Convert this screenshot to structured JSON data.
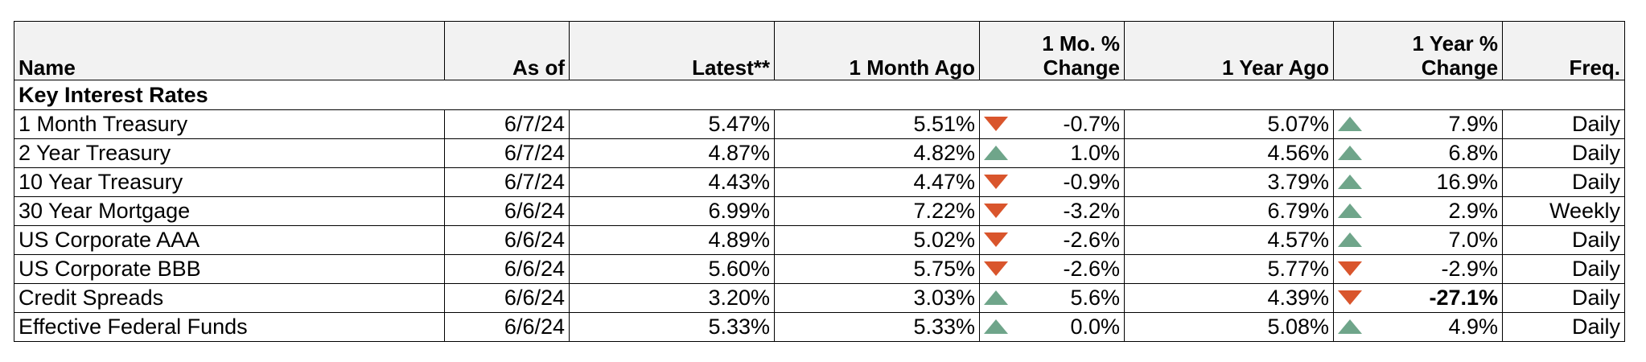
{
  "headers": {
    "name": "Name",
    "as_of": "As of",
    "latest": "Latest**",
    "month_ago": "1 Month Ago",
    "mo_change_line1": "1 Mo. %",
    "mo_change_line2": "Change",
    "year_ago": "1 Year Ago",
    "yr_change_line1": "1 Year %",
    "yr_change_line2": "Change",
    "freq": "Freq."
  },
  "section_title": "Key Interest Rates",
  "colors": {
    "down": "#d9552c",
    "up": "#6fa58a",
    "header_bg": "#f2f2f2"
  },
  "rows": [
    {
      "name": "1 Month Treasury",
      "as_of": "6/7/24",
      "latest": "5.47%",
      "month_ago": "5.51%",
      "mo_dir": "down",
      "mo_change": "-0.7%",
      "year_ago": "5.07%",
      "yr_dir": "up",
      "yr_change": "7.9%",
      "freq": "Daily"
    },
    {
      "name": "2 Year Treasury",
      "as_of": "6/7/24",
      "latest": "4.87%",
      "month_ago": "4.82%",
      "mo_dir": "up",
      "mo_change": "1.0%",
      "year_ago": "4.56%",
      "yr_dir": "up",
      "yr_change": "6.8%",
      "freq": "Daily"
    },
    {
      "name": "10 Year Treasury",
      "as_of": "6/7/24",
      "latest": "4.43%",
      "month_ago": "4.47%",
      "mo_dir": "down",
      "mo_change": "-0.9%",
      "year_ago": "3.79%",
      "yr_dir": "up",
      "yr_change": "16.9%",
      "freq": "Daily"
    },
    {
      "name": "30 Year Mortgage",
      "as_of": "6/6/24",
      "latest": "6.99%",
      "month_ago": "7.22%",
      "mo_dir": "down",
      "mo_change": "-3.2%",
      "year_ago": "6.79%",
      "yr_dir": "up",
      "yr_change": "2.9%",
      "freq": "Weekly"
    },
    {
      "name": "US Corporate AAA",
      "as_of": "6/6/24",
      "latest": "4.89%",
      "month_ago": "5.02%",
      "mo_dir": "down",
      "mo_change": "-2.6%",
      "year_ago": "4.57%",
      "yr_dir": "up",
      "yr_change": "7.0%",
      "freq": "Daily"
    },
    {
      "name": "US Corporate BBB",
      "as_of": "6/6/24",
      "latest": "5.60%",
      "month_ago": "5.75%",
      "mo_dir": "down",
      "mo_change": "-2.6%",
      "year_ago": "5.77%",
      "yr_dir": "down",
      "yr_change": "-2.9%",
      "freq": "Daily"
    },
    {
      "name": "Credit Spreads",
      "as_of": "6/6/24",
      "latest": "3.20%",
      "month_ago": "3.03%",
      "mo_dir": "up",
      "mo_change": "5.6%",
      "year_ago": "4.39%",
      "yr_dir": "down",
      "yr_change": "-27.1%",
      "yr_bold": true,
      "freq": "Daily"
    },
    {
      "name": "Effective Federal Funds",
      "as_of": "6/6/24",
      "latest": "5.33%",
      "month_ago": "5.33%",
      "mo_dir": "up",
      "mo_change": "0.0%",
      "year_ago": "5.08%",
      "yr_dir": "up",
      "yr_change": "4.9%",
      "freq": "Daily"
    }
  ]
}
